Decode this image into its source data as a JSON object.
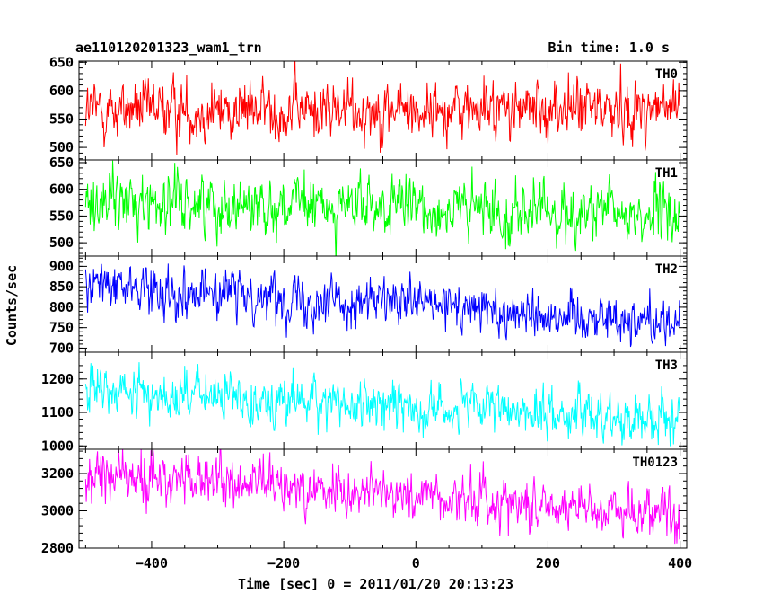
{
  "header": {
    "title": "ae110120201323_wam1_trn",
    "bin_time": "Bin time: 1.0 s"
  },
  "chart_data": {
    "type": "line",
    "xlabel": "Time [sec] 0 = 2011/01/20 20:13:23",
    "ylabel": "Counts/sec",
    "xlim": [
      -510,
      410
    ],
    "x_ticks": [
      -400,
      -200,
      0,
      200,
      400
    ],
    "x_range_of_data": [
      -500,
      399
    ],
    "bin_time_s": 1.0,
    "grid": false,
    "panels": [
      {
        "name": "TH0",
        "color": "#ff0000",
        "ylim": [
          478,
          652
        ],
        "y_ticks": [
          500,
          550,
          600,
          650
        ],
        "trend": {
          "start": 565,
          "end": 568
        },
        "noise_sd": 25
      },
      {
        "name": "TH1",
        "color": "#00ff00",
        "ylim": [
          475,
          655
        ],
        "y_ticks": [
          500,
          550,
          600,
          650
        ],
        "trend": {
          "start": 580,
          "end": 550
        },
        "noise_sd": 26
      },
      {
        "name": "TH2",
        "color": "#0000ff",
        "ylim": [
          690,
          925
        ],
        "y_ticks": [
          700,
          750,
          800,
          850,
          900
        ],
        "trend": {
          "start": 855,
          "end": 765
        },
        "noise_sd": 28
      },
      {
        "name": "TH3",
        "color": "#00ffff",
        "ylim": [
          990,
          1280
        ],
        "y_ticks": [
          1000,
          1100,
          1200
        ],
        "trend": {
          "start": 1165,
          "end": 1080
        },
        "noise_sd": 35
      },
      {
        "name": "TH0123",
        "color": "#ff00ff",
        "ylim": [
          2800,
          3330
        ],
        "y_ticks": [
          2800,
          3000,
          3200
        ],
        "trend": {
          "start": 3200,
          "end": 2990
        },
        "noise_sd": 65
      }
    ]
  }
}
